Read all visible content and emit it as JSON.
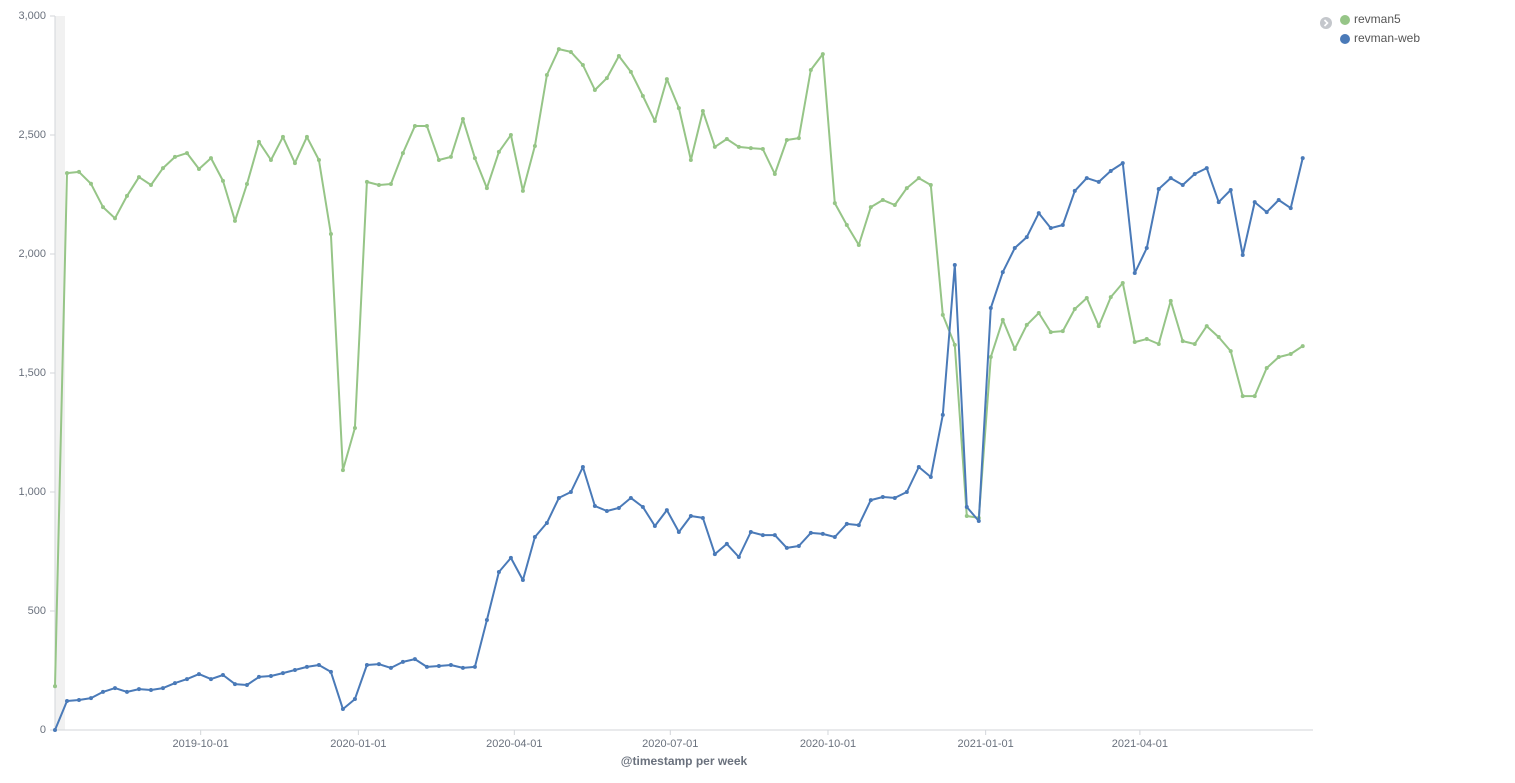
{
  "chart_data": {
    "type": "line",
    "x_label": "@timestamp per week",
    "x": [
      "2019-07-08",
      "2019-07-15",
      "2019-07-22",
      "2019-07-29",
      "2019-08-05",
      "2019-08-12",
      "2019-08-19",
      "2019-08-26",
      "2019-09-02",
      "2019-09-09",
      "2019-09-16",
      "2019-09-23",
      "2019-09-30",
      "2019-10-07",
      "2019-10-14",
      "2019-10-21",
      "2019-10-28",
      "2019-11-04",
      "2019-11-11",
      "2019-11-18",
      "2019-11-25",
      "2019-12-02",
      "2019-12-09",
      "2019-12-16",
      "2019-12-23",
      "2019-12-30",
      "2020-01-06",
      "2020-01-13",
      "2020-01-20",
      "2020-01-27",
      "2020-02-03",
      "2020-02-10",
      "2020-02-17",
      "2020-02-24",
      "2020-03-02",
      "2020-03-09",
      "2020-03-16",
      "2020-03-23",
      "2020-03-30",
      "2020-04-06",
      "2020-04-13",
      "2020-04-20",
      "2020-04-27",
      "2020-05-04",
      "2020-05-11",
      "2020-05-18",
      "2020-05-25",
      "2020-06-01",
      "2020-06-08",
      "2020-06-15",
      "2020-06-22",
      "2020-06-29",
      "2020-07-06",
      "2020-07-13",
      "2020-07-20",
      "2020-07-27",
      "2020-08-03",
      "2020-08-10",
      "2020-08-17",
      "2020-08-24",
      "2020-08-31",
      "2020-09-07",
      "2020-09-14",
      "2020-09-21",
      "2020-09-28",
      "2020-10-05",
      "2020-10-12",
      "2020-10-19",
      "2020-10-26",
      "2020-11-02",
      "2020-11-09",
      "2020-11-16",
      "2020-11-23",
      "2020-11-30",
      "2020-12-07",
      "2020-12-14",
      "2020-12-21",
      "2020-12-28",
      "2021-01-04",
      "2021-01-11",
      "2021-01-18",
      "2021-01-25",
      "2021-02-01",
      "2021-02-08",
      "2021-02-15",
      "2021-02-22",
      "2021-03-01",
      "2021-03-08",
      "2021-03-15",
      "2021-03-22",
      "2021-03-29",
      "2021-04-05",
      "2021-04-12",
      "2021-04-19",
      "2021-04-26",
      "2021-05-03",
      "2021-05-10",
      "2021-05-17",
      "2021-05-24",
      "2021-05-31",
      "2021-06-07",
      "2021-06-14",
      "2021-06-21",
      "2021-06-28",
      "2021-07-05"
    ],
    "series": [
      {
        "name": "revman5",
        "color": "#96c587",
        "values": [
          184,
          2340,
          2345,
          2295,
          2197,
          2150,
          2244,
          2323,
          2290,
          2361,
          2408,
          2424,
          2357,
          2403,
          2307,
          2139,
          2294,
          2471,
          2395,
          2492,
          2382,
          2492,
          2395,
          2084,
          1092,
          1269,
          2303,
          2290,
          2294,
          2424,
          2538,
          2538,
          2395,
          2408,
          2567,
          2403,
          2277,
          2429,
          2500,
          2265,
          2454,
          2752,
          2861,
          2849,
          2794,
          2689,
          2739,
          2832,
          2765,
          2664,
          2559,
          2735,
          2613,
          2395,
          2601,
          2450,
          2483,
          2450,
          2445,
          2441,
          2336,
          2479,
          2487,
          2773,
          2840,
          2214,
          2122,
          2038,
          2197,
          2227,
          2206,
          2277,
          2319,
          2290,
          1744,
          1618,
          899,
          891,
          1567,
          1723,
          1601,
          1702,
          1752,
          1672,
          1676,
          1769,
          1815,
          1697,
          1819,
          1878,
          1630,
          1643,
          1622,
          1803,
          1634,
          1622,
          1697,
          1651,
          1592,
          1403,
          1403,
          1521,
          1567,
          1580,
          1613
        ]
      },
      {
        "name": "revman-web",
        "color": "#4a7ab8",
        "values": [
          0,
          122,
          126,
          134,
          160,
          176,
          160,
          172,
          168,
          176,
          197,
          214,
          235,
          214,
          231,
          193,
          189,
          223,
          227,
          239,
          252,
          265,
          273,
          244,
          88,
          130,
          273,
          277,
          261,
          286,
          298,
          265,
          269,
          273,
          261,
          265,
          462,
          664,
          723,
          630,
          811,
          870,
          975,
          1000,
          1105,
          941,
          920,
          933,
          975,
          937,
          857,
          924,
          832,
          899,
          891,
          739,
          782,
          727,
          832,
          819,
          819,
          765,
          773,
          828,
          824,
          811,
          866,
          861,
          966,
          979,
          975,
          1000,
          1105,
          1063,
          1324,
          1954,
          937,
          878,
          1773,
          1924,
          2025,
          2071,
          2172,
          2109,
          2122,
          2265,
          2319,
          2303,
          2349,
          2382,
          1920,
          2025,
          2273,
          2319,
          2290,
          2336,
          2361,
          2218,
          2269,
          1996,
          2218,
          2176,
          2227,
          2193,
          2403
        ]
      }
    ],
    "xlim": [
      "2019-07-08",
      "2021-07-11"
    ],
    "xticks": [
      "2019-10-01",
      "2020-01-01",
      "2020-04-01",
      "2020-07-01",
      "2020-10-01",
      "2021-01-01",
      "2021-04-01"
    ],
    "ylim": [
      0,
      3000
    ],
    "yticks": [
      0,
      500,
      {
        "value": 1000,
        "label": "1,000"
      },
      {
        "value": 1500,
        "label": "1,500"
      },
      {
        "value": 2000,
        "label": "2,000"
      },
      {
        "value": 2500,
        "label": "2,500"
      },
      {
        "value": 3000,
        "label": "3,000"
      }
    ],
    "grid": false,
    "legend": "top-right"
  }
}
